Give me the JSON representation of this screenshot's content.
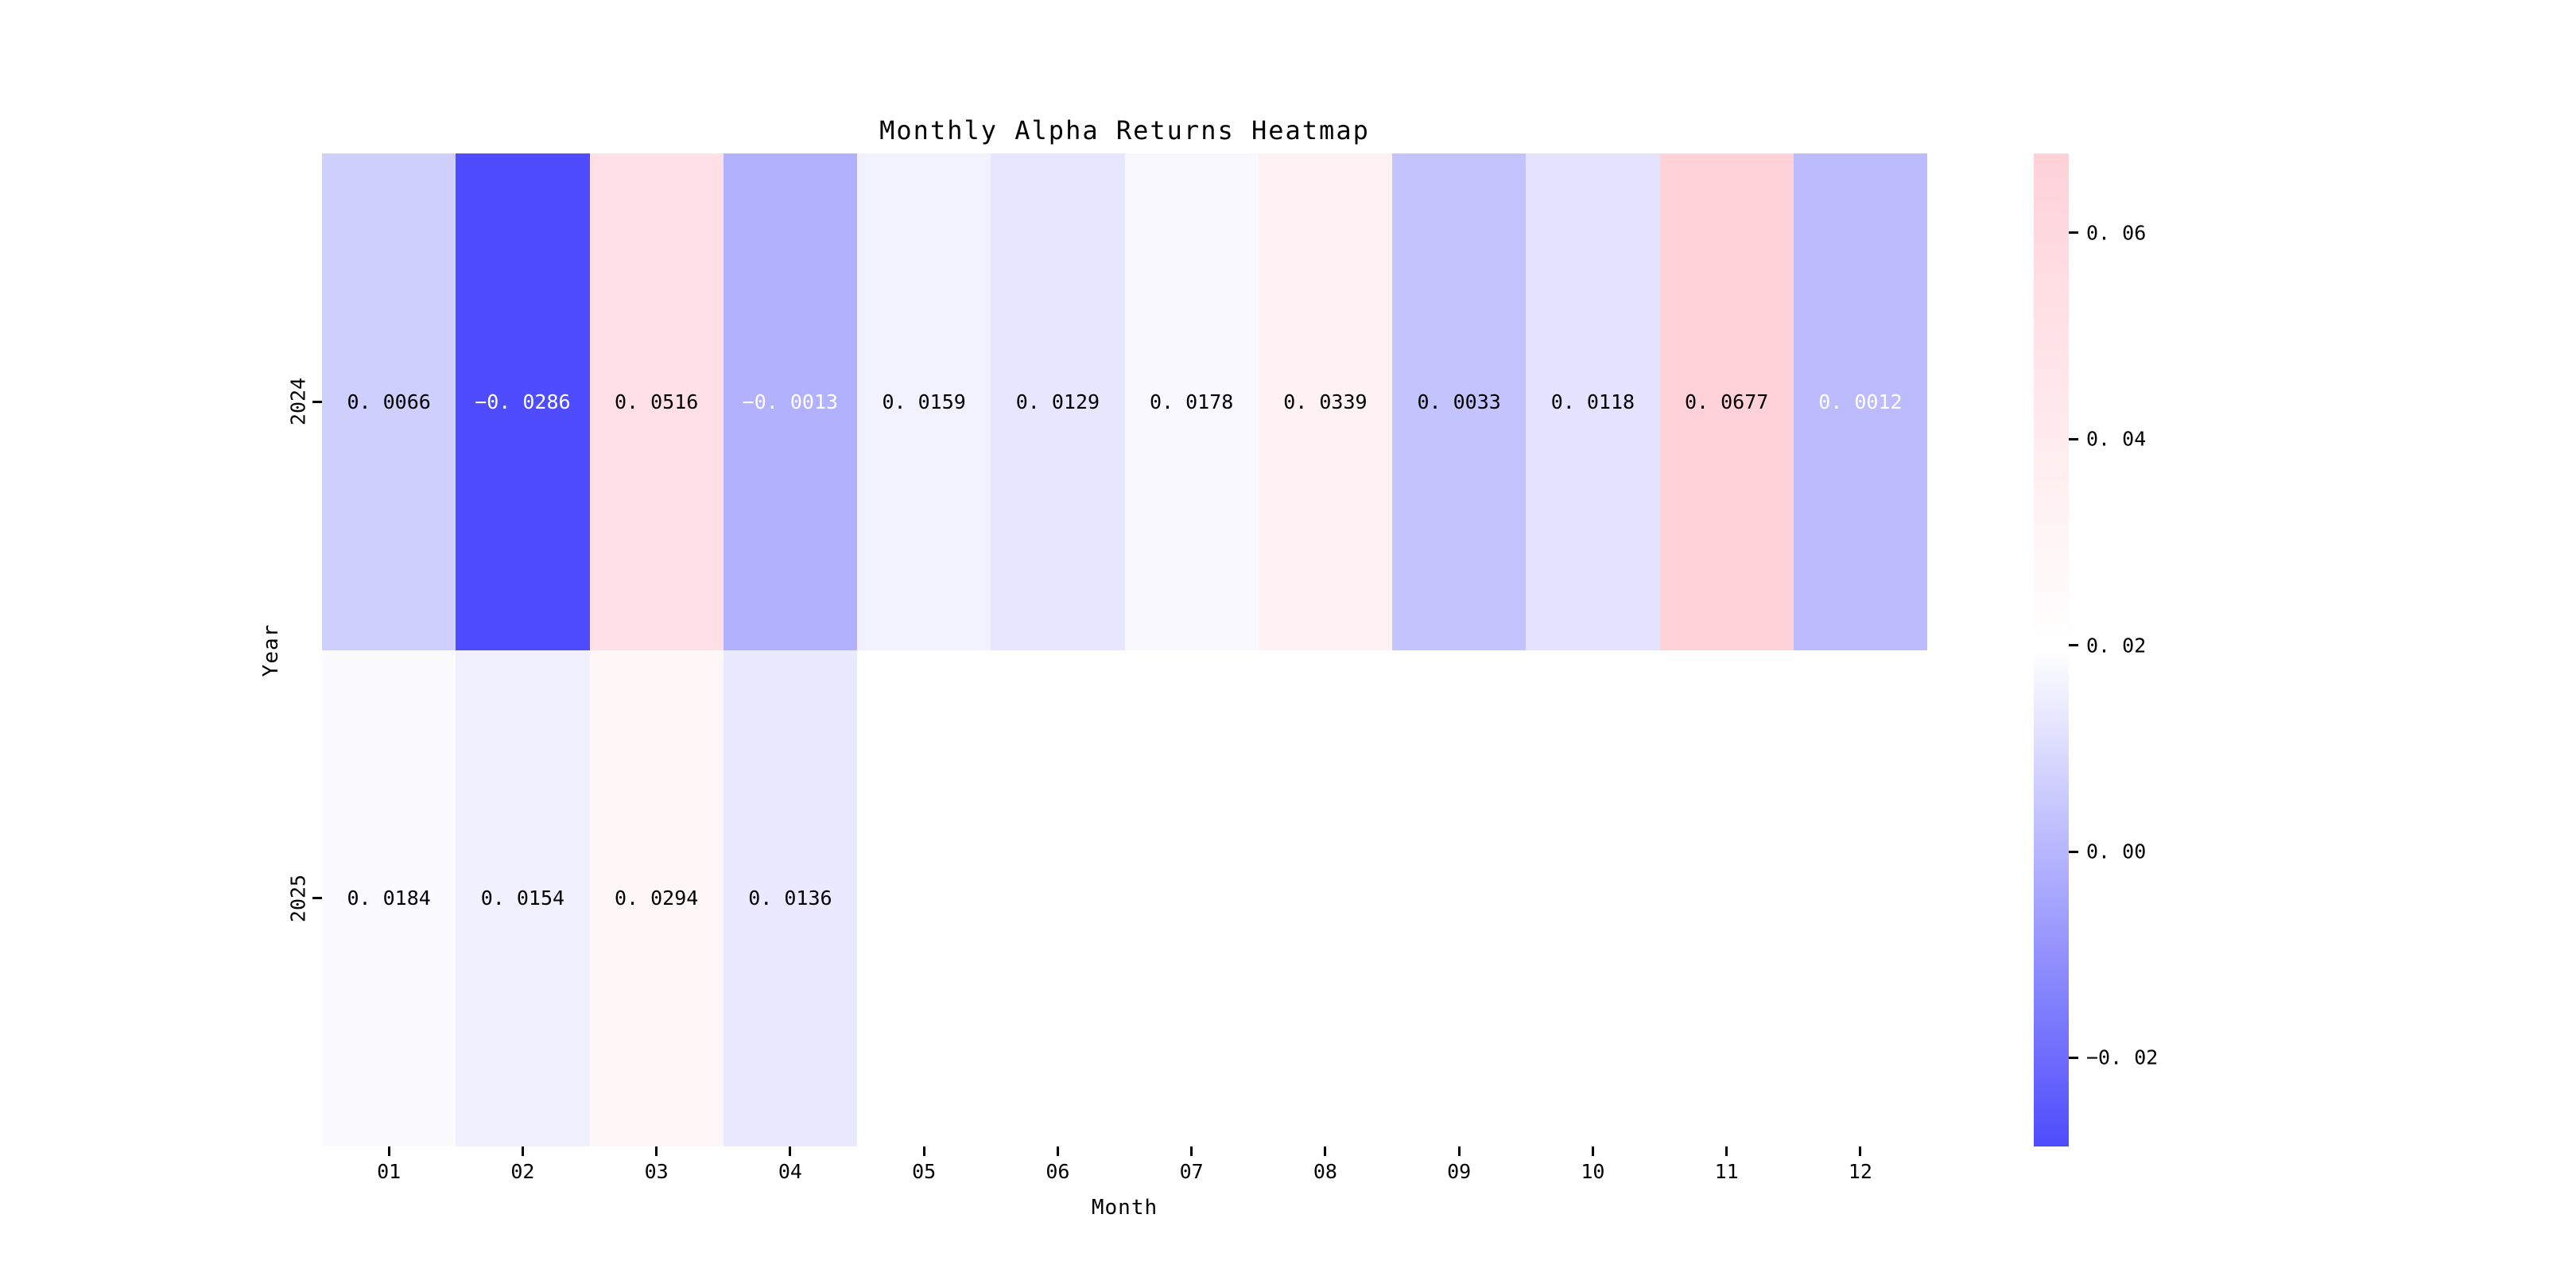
{
  "title": "Monthly Alpha Returns Heatmap",
  "chart_data": {
    "type": "heatmap",
    "title": "Monthly Alpha Returns Heatmap",
    "xlabel": "Month",
    "ylabel": "Year",
    "columns": [
      "01",
      "02",
      "03",
      "04",
      "05",
      "06",
      "07",
      "08",
      "09",
      "10",
      "11",
      "12"
    ],
    "rows": [
      "2024",
      "2025"
    ],
    "values": [
      [
        0.0066,
        -0.0286,
        0.0516,
        -0.0013,
        0.0159,
        0.0129,
        0.0178,
        0.0339,
        0.0033,
        0.0118,
        0.0677,
        0.0012
      ],
      [
        0.0184,
        0.0154,
        0.0294,
        0.0136,
        null,
        null,
        null,
        null,
        null,
        null,
        null,
        null
      ]
    ],
    "annotation_colors": [
      [
        "black",
        "white",
        "black",
        "white",
        "black",
        "black",
        "black",
        "black",
        "black",
        "black",
        "black",
        "white"
      ],
      [
        "black",
        "black",
        "black",
        "black",
        null,
        null,
        null,
        null,
        null,
        null,
        null,
        null
      ]
    ],
    "value_format_decimals": 4,
    "grid": false,
    "legend_position": null,
    "colorbar": {
      "tick_labels": [
        "0.06",
        "0.04",
        "0.02",
        "0.00",
        "-0.02"
      ],
      "tick_values": [
        0.06,
        0.04,
        0.02,
        0.0,
        -0.02
      ],
      "vmin": -0.0286,
      "vmax": 0.0677,
      "color_low": "#4e4cfc",
      "color_mid": "#ffffff",
      "color_high": "#ffd1d9"
    }
  }
}
